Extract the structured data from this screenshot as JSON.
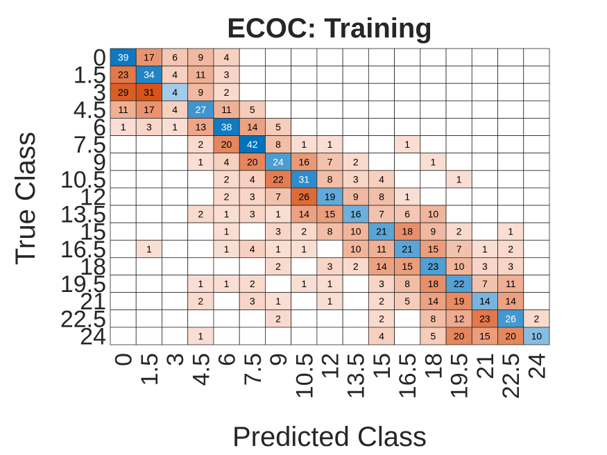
{
  "chart_data": {
    "type": "heatmap",
    "title": "ECOC: Training",
    "xlabel": "Predicted Class",
    "ylabel": "True Class",
    "classes": [
      "0",
      "1.5",
      "3",
      "4.5",
      "6",
      "7.5",
      "9",
      "10.5",
      "12",
      "13.5",
      "15",
      "16.5",
      "18",
      "19.5",
      "21",
      "22.5",
      "24"
    ],
    "matrix": [
      [
        39,
        17,
        6,
        9,
        4,
        null,
        null,
        null,
        null,
        null,
        null,
        null,
        null,
        null,
        null,
        null,
        null
      ],
      [
        23,
        34,
        4,
        11,
        3,
        null,
        null,
        null,
        null,
        null,
        null,
        null,
        null,
        null,
        null,
        null,
        null
      ],
      [
        29,
        31,
        4,
        9,
        2,
        null,
        null,
        null,
        null,
        null,
        null,
        null,
        null,
        null,
        null,
        null,
        null
      ],
      [
        11,
        17,
        4,
        27,
        11,
        5,
        null,
        null,
        null,
        null,
        null,
        null,
        null,
        null,
        null,
        null,
        null
      ],
      [
        1,
        3,
        1,
        13,
        38,
        14,
        5,
        null,
        null,
        null,
        null,
        null,
        null,
        null,
        null,
        null,
        null
      ],
      [
        null,
        null,
        null,
        2,
        20,
        42,
        8,
        1,
        1,
        null,
        null,
        1,
        null,
        null,
        null,
        null,
        null
      ],
      [
        null,
        null,
        null,
        1,
        4,
        20,
        24,
        16,
        7,
        2,
        null,
        null,
        1,
        null,
        null,
        null,
        null
      ],
      [
        null,
        null,
        null,
        null,
        2,
        4,
        22,
        31,
        8,
        3,
        4,
        null,
        null,
        1,
        null,
        null,
        null
      ],
      [
        null,
        null,
        null,
        null,
        2,
        3,
        7,
        26,
        19,
        9,
        8,
        1,
        null,
        null,
        null,
        null,
        null
      ],
      [
        null,
        null,
        null,
        2,
        1,
        3,
        1,
        14,
        15,
        16,
        7,
        6,
        10,
        null,
        null,
        null,
        null
      ],
      [
        null,
        null,
        null,
        null,
        1,
        null,
        3,
        2,
        8,
        10,
        21,
        18,
        9,
        2,
        null,
        1,
        null
      ],
      [
        null,
        1,
        null,
        null,
        1,
        4,
        1,
        1,
        null,
        10,
        11,
        21,
        15,
        7,
        1,
        2,
        null
      ],
      [
        null,
        null,
        null,
        null,
        null,
        null,
        2,
        null,
        3,
        2,
        14,
        15,
        23,
        10,
        3,
        3,
        null
      ],
      [
        null,
        null,
        null,
        1,
        1,
        2,
        null,
        1,
        1,
        null,
        3,
        8,
        18,
        22,
        7,
        11,
        null
      ],
      [
        null,
        null,
        null,
        2,
        null,
        3,
        1,
        null,
        1,
        null,
        2,
        5,
        14,
        19,
        14,
        14,
        null
      ],
      [
        null,
        null,
        null,
        null,
        null,
        null,
        2,
        null,
        null,
        null,
        2,
        null,
        8,
        12,
        23,
        26,
        2
      ],
      [
        null,
        null,
        null,
        1,
        null,
        null,
        null,
        null,
        null,
        null,
        4,
        null,
        5,
        20,
        15,
        20,
        10
      ]
    ],
    "colors": {
      "diag_dark": "#0072bd",
      "diag_light": "#b3d5ee",
      "off_dark": "#d95319",
      "off_light": "#fbe3d9",
      "grid": "#262626"
    }
  }
}
